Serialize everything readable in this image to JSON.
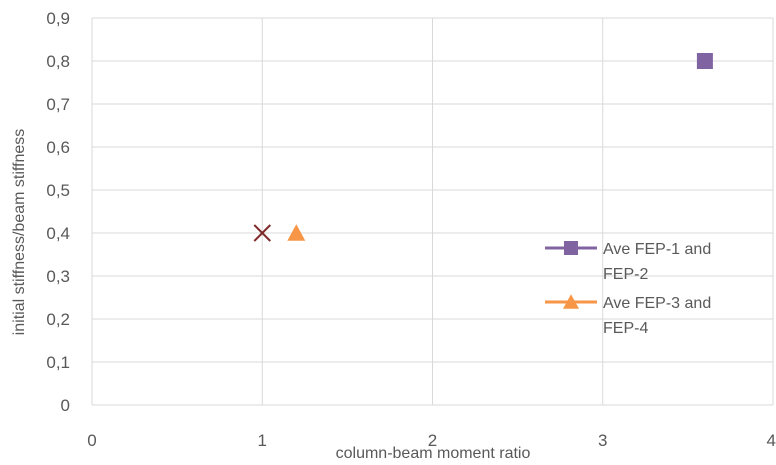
{
  "chart_data": {
    "type": "scatter",
    "xlabel": "column-beam moment ratio",
    "ylabel": "initial stiffness/beam stiffness",
    "xlim": [
      0,
      4
    ],
    "ylim": [
      0,
      0.9
    ],
    "x_ticks": [
      "0",
      "1",
      "2",
      "3",
      "4"
    ],
    "y_ticks": [
      "0",
      "0,1",
      "0,2",
      "0,3",
      "0,4",
      "0,5",
      "0,6",
      "0,7",
      "0,8",
      "0,9"
    ],
    "grid": true,
    "legend_position": "right",
    "series": [
      {
        "name": "Ave FEP-1 and FEP-2",
        "marker": "square",
        "color": "#8064a2",
        "points": [
          {
            "x": 3.6,
            "y": 0.8
          }
        ]
      },
      {
        "name": "Ave FEP-3 and FEP-4",
        "marker": "triangle",
        "color": "#f79646",
        "points": [
          {
            "x": 1.2,
            "y": 0.4
          }
        ]
      },
      {
        "name": "",
        "marker": "x",
        "color": "#7f2a2a",
        "points": [
          {
            "x": 1.0,
            "y": 0.4
          }
        ]
      }
    ],
    "legend": [
      {
        "lines": [
          "Ave FEP-1 and",
          "FEP-2"
        ],
        "marker": "square",
        "color": "#8064a2"
      },
      {
        "lines": [
          "Ave FEP-3 and",
          "FEP-4"
        ],
        "marker": "triangle",
        "color": "#f79646"
      }
    ]
  }
}
